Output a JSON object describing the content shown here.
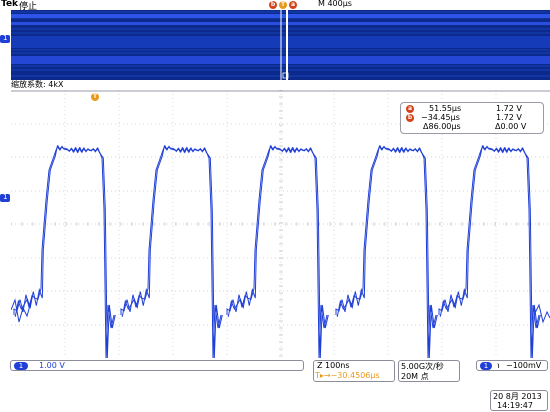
{
  "header": {
    "brand": "Tek",
    "status": "停止",
    "timebase": "M 400µs",
    "cursor_a_label": "a",
    "cursor_b_label": "b",
    "trigger_label": "T"
  },
  "zoom": {
    "factor_text": "缩放系数: 4kX",
    "trigger_label": "T"
  },
  "channel": {
    "label": "1",
    "scale": "1.00 V",
    "color": "#1f3fd6"
  },
  "readout": {
    "a_label": "a",
    "a_time": "51.55µs",
    "a_volt": "1.72 V",
    "b_label": "b",
    "b_time": "−34.45µs",
    "b_volt": "1.72 V",
    "delta_time": "Δ86.00µs",
    "delta_volt": "Δ0.00 V"
  },
  "bottom": {
    "zoom_time": "Z 100ns",
    "trigger_pos": "T▸→−30.4506µs",
    "sample_rate": "5.00G次/秒",
    "record_length": "20M 点",
    "trigger_channel": "1",
    "trigger_slope": "℩",
    "trigger_level": "−100mV",
    "date": "20 8月  2013",
    "time": "14:19:47"
  },
  "colors": {
    "trace": "#1f3fd6",
    "cursor": "#e8702a",
    "accent_orange": "#e89a1c",
    "overview_bg": "#0b2a8c"
  }
}
